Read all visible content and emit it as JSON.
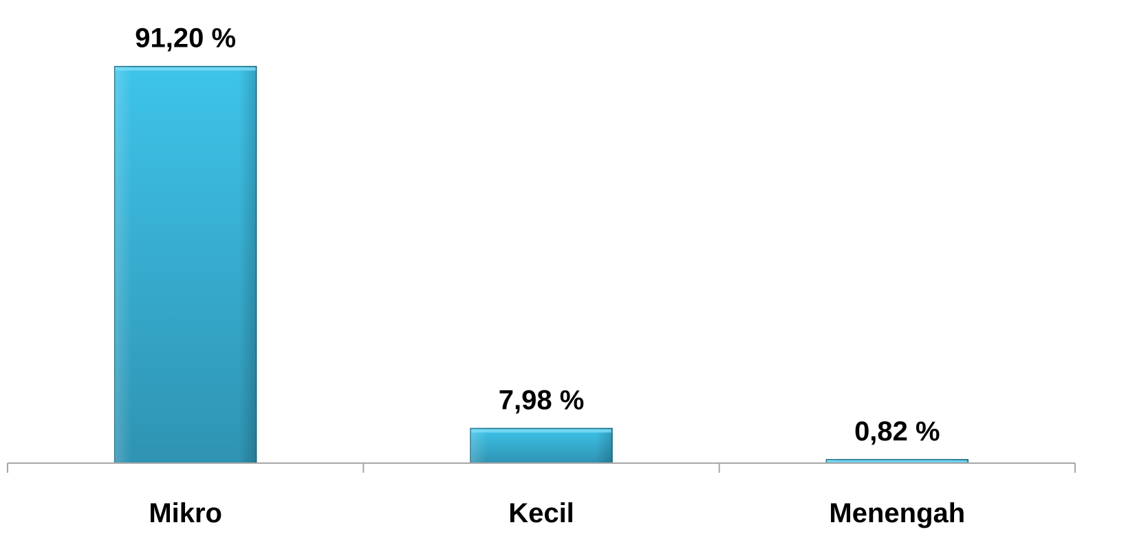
{
  "chart_data": {
    "type": "bar",
    "categories": [
      "Mikro",
      "Kecil",
      "Menengah"
    ],
    "values": [
      91.2,
      7.98,
      0.82
    ],
    "data_labels": [
      "91,20 %",
      "7,98 %",
      "0,82 %"
    ],
    "ylim": [
      0,
      100
    ],
    "grid": false,
    "legend": "none",
    "colors": {
      "bar_top": "#3ec4ea",
      "bar_bottom": "#2f93b2",
      "bar_edge": "#1e6f87",
      "axis": "#a6a6a6"
    }
  }
}
